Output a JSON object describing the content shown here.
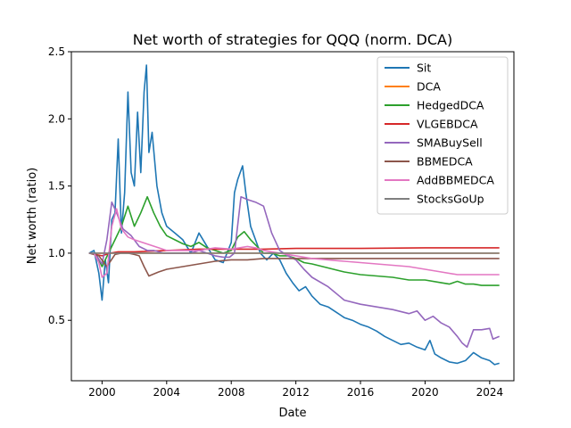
{
  "chart_data": {
    "type": "line",
    "title": "Net worth of strategies for QQQ (norm. DCA)",
    "xlabel": "Date",
    "ylabel": "Net worth (ratio)",
    "xlim": [
      1998.1,
      2025.5
    ],
    "ylim": [
      0.05,
      2.5
    ],
    "xticks": [
      2000,
      2004,
      2008,
      2012,
      2016,
      2020,
      2024
    ],
    "yticks": [
      0.5,
      1.0,
      1.5,
      2.0,
      2.5
    ],
    "ytick_labels": [
      "0.5",
      "1.0",
      "1.5",
      "2.0",
      "2.5"
    ],
    "grid": false,
    "legend_position": "top-right",
    "series": [
      {
        "name": "Sit",
        "color": "#1f77b4",
        "x": [
          1999.2,
          1999.5,
          1999.8,
          2000.0,
          2000.2,
          2000.4,
          2000.6,
          2000.8,
          2001.0,
          2001.2,
          2001.4,
          2001.6,
          2001.8,
          2002.0,
          2002.2,
          2002.4,
          2002.6,
          2002.75,
          2002.9,
          2003.1,
          2003.4,
          2003.7,
          2004.0,
          2004.5,
          2005.0,
          2005.5,
          2006.0,
          2006.5,
          2007.0,
          2007.5,
          2008.0,
          2008.2,
          2008.4,
          2008.7,
          2008.9,
          2009.2,
          2009.5,
          2009.8,
          2010.2,
          2010.6,
          2011.0,
          2011.4,
          2011.8,
          2012.2,
          2012.6,
          2013.0,
          2013.5,
          2014.0,
          2014.5,
          2015.0,
          2015.5,
          2016.0,
          2016.5,
          2017.0,
          2017.5,
          2018.0,
          2018.5,
          2019.0,
          2019.5,
          2020.0,
          2020.3,
          2020.6,
          2021.0,
          2021.5,
          2022.0,
          2022.5,
          2023.0,
          2023.5,
          2024.0,
          2024.3,
          2024.6
        ],
        "y": [
          1.0,
          1.02,
          0.85,
          0.65,
          0.95,
          0.78,
          1.25,
          1.3,
          1.85,
          1.15,
          1.45,
          2.2,
          1.6,
          1.5,
          2.05,
          1.6,
          2.2,
          2.4,
          1.75,
          1.9,
          1.5,
          1.3,
          1.2,
          1.15,
          1.1,
          1.0,
          1.15,
          1.05,
          0.95,
          0.93,
          1.08,
          1.45,
          1.55,
          1.65,
          1.45,
          1.2,
          1.1,
          1.0,
          0.95,
          1.0,
          0.95,
          0.85,
          0.78,
          0.72,
          0.75,
          0.68,
          0.62,
          0.6,
          0.56,
          0.52,
          0.5,
          0.47,
          0.45,
          0.42,
          0.38,
          0.35,
          0.32,
          0.33,
          0.3,
          0.28,
          0.35,
          0.25,
          0.22,
          0.19,
          0.18,
          0.2,
          0.26,
          0.22,
          0.2,
          0.17,
          0.18
        ]
      },
      {
        "name": "DCA",
        "color": "#ff7f0e",
        "x": [
          1999.2,
          2024.6
        ],
        "y": [
          1.0,
          1.0
        ]
      },
      {
        "name": "HedgedDCA",
        "color": "#2ca02c",
        "x": [
          1999.2,
          1999.6,
          2000.0,
          2000.4,
          2000.8,
          2001.2,
          2001.6,
          2002.0,
          2002.4,
          2002.8,
          2003.2,
          2003.6,
          2004.0,
          2004.5,
          2005.0,
          2005.5,
          2006.0,
          2006.5,
          2007.0,
          2007.5,
          2008.0,
          2008.4,
          2008.8,
          2009.2,
          2009.6,
          2010.0,
          2010.5,
          2011.0,
          2011.5,
          2012.0,
          2012.5,
          2013.0,
          2014.0,
          2015.0,
          2016.0,
          2017.0,
          2018.0,
          2019.0,
          2020.0,
          2021.0,
          2021.5,
          2022.0,
          2022.5,
          2023.0,
          2023.5,
          2024.0,
          2024.6
        ],
        "y": [
          1.0,
          1.0,
          0.9,
          1.0,
          1.1,
          1.2,
          1.35,
          1.2,
          1.3,
          1.42,
          1.3,
          1.2,
          1.13,
          1.1,
          1.07,
          1.05,
          1.08,
          1.04,
          1.02,
          1.0,
          1.02,
          1.12,
          1.16,
          1.1,
          1.05,
          1.0,
          1.0,
          0.98,
          0.98,
          0.96,
          0.93,
          0.92,
          0.89,
          0.86,
          0.84,
          0.83,
          0.82,
          0.8,
          0.8,
          0.78,
          0.77,
          0.79,
          0.77,
          0.77,
          0.76,
          0.76,
          0.76
        ]
      },
      {
        "name": "VLGEBDCA",
        "color": "#d62728",
        "x": [
          1999.2,
          2000.0,
          2000.5,
          2001.0,
          2002.0,
          2004.0,
          2006.0,
          2008.0,
          2010.0,
          2012.0,
          2016.0,
          2020.0,
          2024.6
        ],
        "y": [
          1.0,
          0.98,
          1.0,
          1.01,
          1.01,
          1.02,
          1.03,
          1.03,
          1.03,
          1.035,
          1.035,
          1.04,
          1.04
        ]
      },
      {
        "name": "SMABuySell",
        "color": "#9467bd",
        "x": [
          1999.2,
          1999.6,
          2000.0,
          2000.3,
          2000.6,
          2000.9,
          2001.3,
          2001.8,
          2002.3,
          2002.8,
          2003.2,
          2003.8,
          2004.5,
          2005.0,
          2005.5,
          2006.0,
          2006.5,
          2007.0,
          2007.5,
          2007.9,
          2008.2,
          2008.6,
          2009.0,
          2009.5,
          2010.0,
          2010.5,
          2011.0,
          2011.5,
          2012.0,
          2012.5,
          2013.0,
          2014.0,
          2015.0,
          2016.0,
          2017.0,
          2018.0,
          2019.0,
          2019.5,
          2020.0,
          2020.5,
          2021.0,
          2021.5,
          2022.0,
          2022.3,
          2022.6,
          2023.0,
          2023.5,
          2024.0,
          2024.2,
          2024.6
        ],
        "y": [
          1.0,
          0.99,
          0.92,
          1.1,
          1.38,
          1.3,
          1.18,
          1.13,
          1.05,
          1.02,
          1.02,
          1.0,
          1.0,
          1.0,
          1.0,
          1.02,
          1.0,
          0.98,
          0.97,
          0.97,
          1.0,
          1.42,
          1.4,
          1.38,
          1.35,
          1.15,
          1.02,
          0.98,
          0.95,
          0.88,
          0.82,
          0.75,
          0.65,
          0.62,
          0.6,
          0.58,
          0.55,
          0.57,
          0.5,
          0.53,
          0.48,
          0.45,
          0.38,
          0.33,
          0.3,
          0.43,
          0.43,
          0.44,
          0.36,
          0.38
        ]
      },
      {
        "name": "BBMEDCA",
        "color": "#8c564b",
        "x": [
          1999.2,
          1999.8,
          2000.3,
          2000.8,
          2001.2,
          2001.6,
          2002.0,
          2002.3,
          2002.6,
          2002.9,
          2003.5,
          2004.0,
          2005.0,
          2006.0,
          2007.0,
          2008.0,
          2009.0,
          2010.0,
          2012.0,
          2016.0,
          2020.0,
          2024.6
        ],
        "y": [
          1.0,
          0.98,
          0.9,
          0.99,
          1.0,
          1.0,
          0.99,
          0.98,
          0.9,
          0.83,
          0.86,
          0.88,
          0.9,
          0.92,
          0.94,
          0.95,
          0.95,
          0.96,
          0.96,
          0.96,
          0.96,
          0.96
        ]
      },
      {
        "name": "AddBBMEDCA",
        "color": "#e377c2",
        "x": [
          1999.2,
          1999.5,
          1999.8,
          2000.0,
          2000.3,
          2000.6,
          2000.9,
          2001.2,
          2001.6,
          2002.0,
          2002.5,
          2003.0,
          2003.5,
          2004.0,
          2004.5,
          2005.0,
          2006.0,
          2007.0,
          2008.0,
          2008.5,
          2009.0,
          2009.5,
          2010.0,
          2011.0,
          2012.0,
          2013.0,
          2014.0,
          2015.0,
          2016.0,
          2017.0,
          2018.0,
          2019.0,
          2020.0,
          2021.0,
          2022.0,
          2023.0,
          2024.0,
          2024.6
        ],
        "y": [
          1.0,
          1.0,
          0.93,
          0.82,
          0.85,
          1.2,
          1.33,
          1.18,
          1.12,
          1.1,
          1.08,
          1.06,
          1.04,
          1.02,
          1.02,
          1.02,
          1.02,
          1.04,
          1.03,
          1.04,
          1.05,
          1.04,
          1.02,
          1.0,
          0.98,
          0.96,
          0.95,
          0.94,
          0.93,
          0.92,
          0.91,
          0.9,
          0.88,
          0.86,
          0.84,
          0.84,
          0.84,
          0.84
        ]
      },
      {
        "name": "StocksGoUp",
        "color": "#7f7f7f",
        "x": [
          1999.2,
          2024.6
        ],
        "y": [
          1.0,
          1.0
        ]
      }
    ]
  }
}
